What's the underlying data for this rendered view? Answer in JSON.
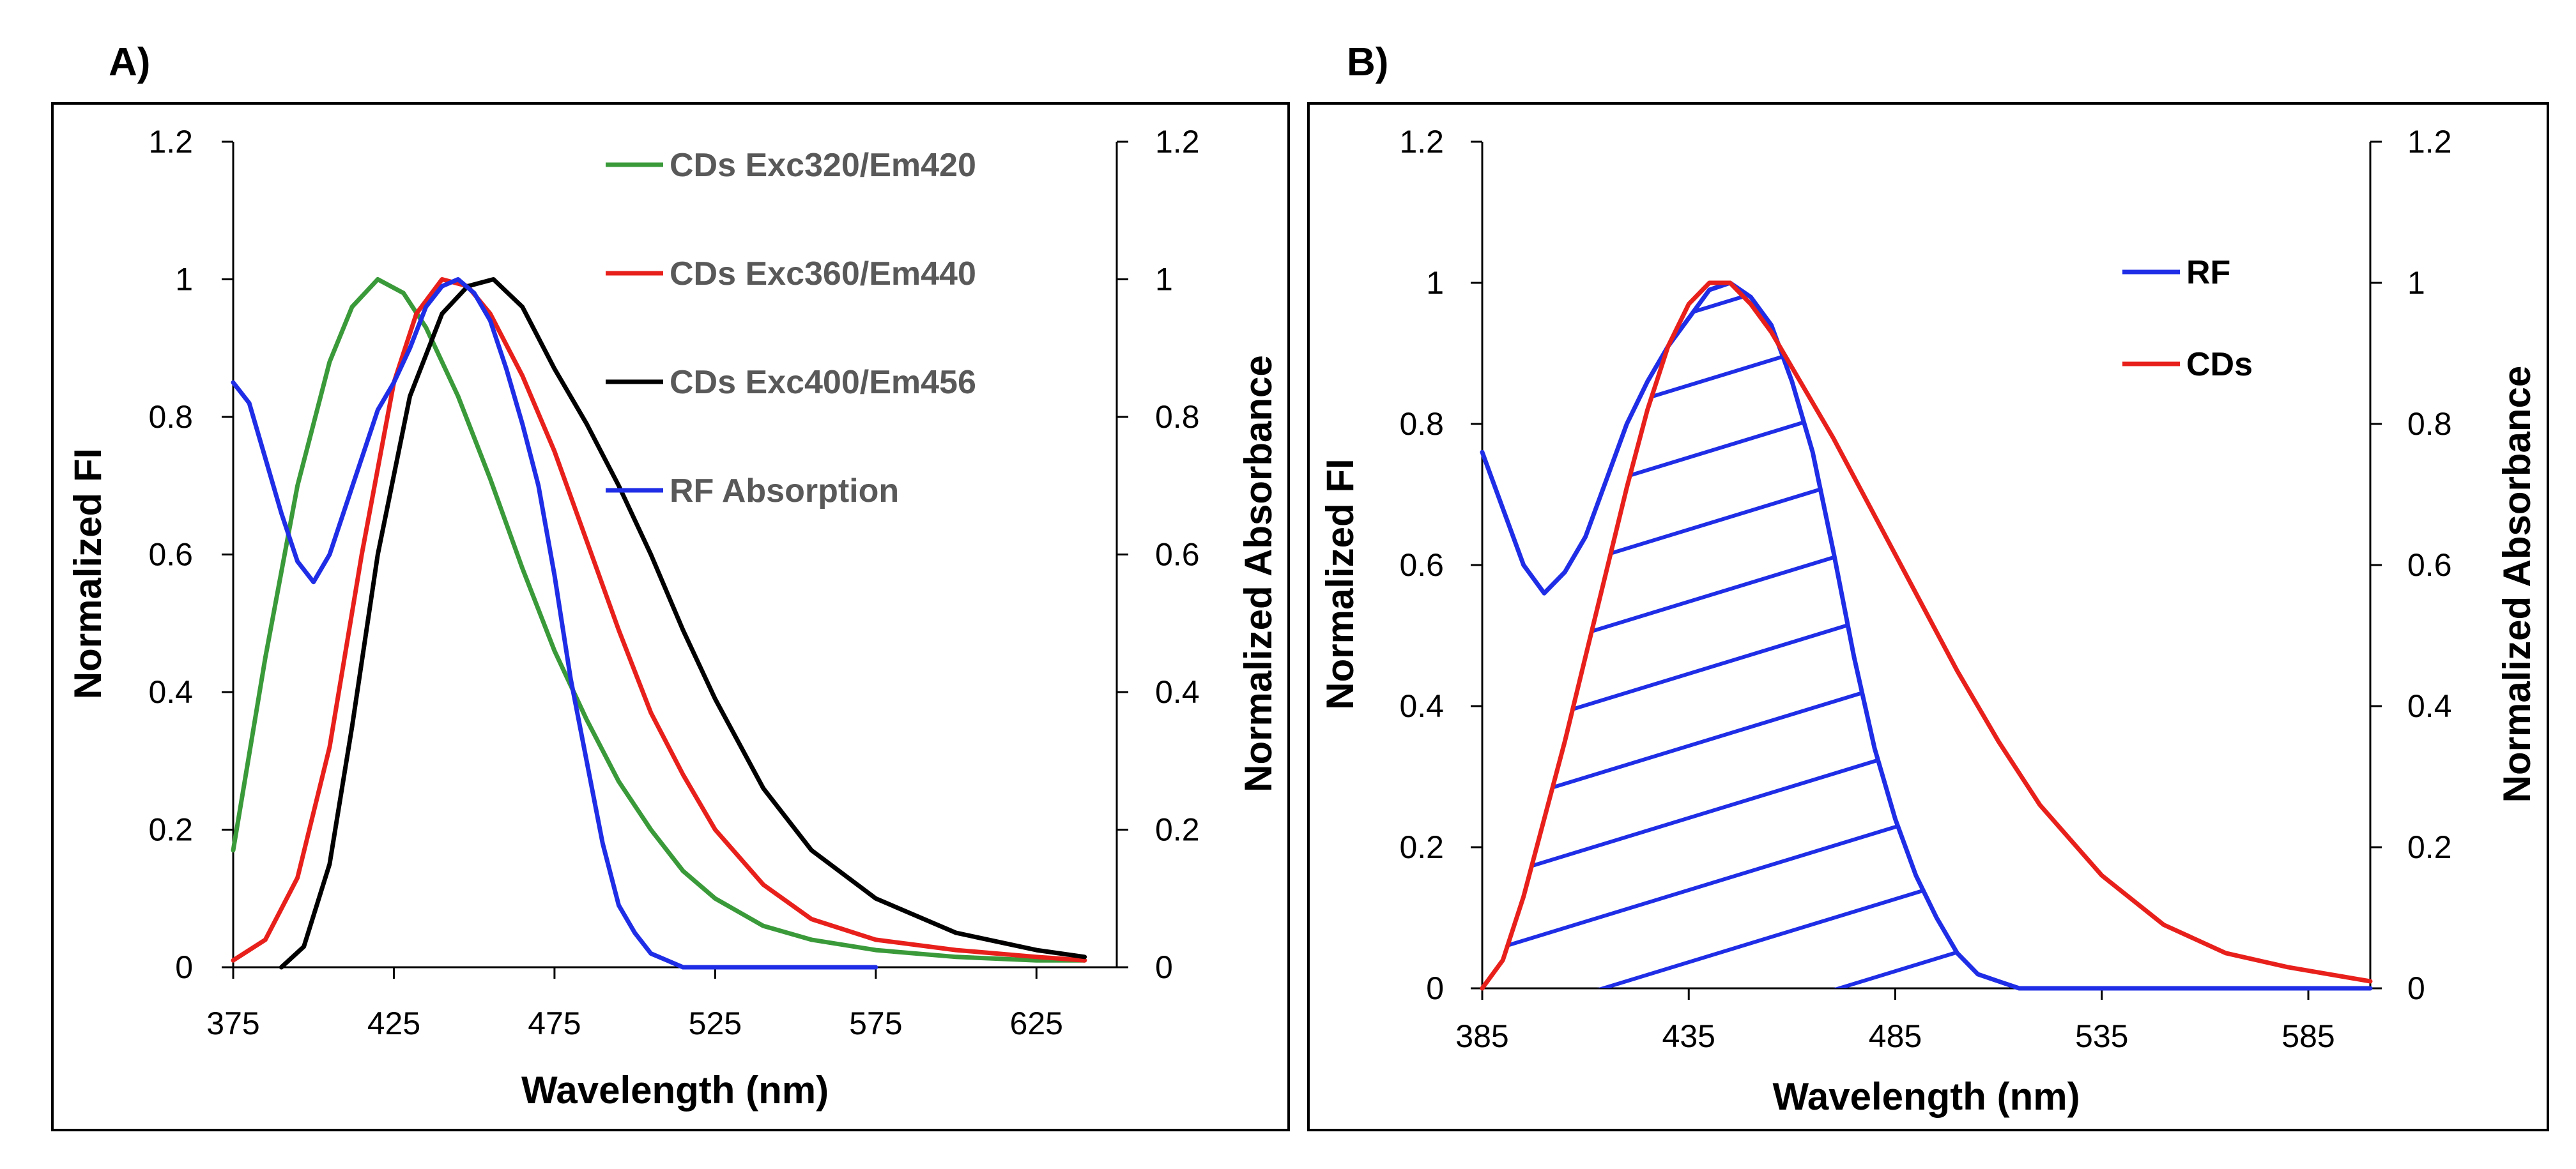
{
  "chart_data": [
    {
      "panel": "A)",
      "type": "line",
      "xlabel": "Wavelength (nm)",
      "ylabel": "Normalized FI",
      "y2label": "Normalized Absorbance",
      "xlim": [
        375,
        650
      ],
      "ylim": [
        0,
        1.2
      ],
      "y2lim": [
        0,
        1.2
      ],
      "xticks": [
        "375",
        "425",
        "475",
        "525",
        "575",
        "625"
      ],
      "yticks": [
        "0",
        "0.2",
        "0.4",
        "0.6",
        "0.8",
        "1",
        "1.2"
      ],
      "y2ticks": [
        "0",
        "0.2",
        "0.4",
        "0.6",
        "0.8",
        "1",
        "1.2"
      ],
      "legend_position": "top-right",
      "series": [
        {
          "name": "CDs Exc320/Em420",
          "color": "#3a9a3a",
          "axis": "left",
          "x": [
            375,
            385,
            395,
            405,
            412,
            420,
            428,
            435,
            445,
            455,
            465,
            475,
            485,
            495,
            505,
            515,
            525,
            540,
            555,
            575,
            600,
            625,
            640
          ],
          "y": [
            0.17,
            0.45,
            0.7,
            0.88,
            0.96,
            1.0,
            0.98,
            0.93,
            0.83,
            0.71,
            0.58,
            0.46,
            0.36,
            0.27,
            0.2,
            0.14,
            0.1,
            0.06,
            0.04,
            0.025,
            0.015,
            0.01,
            0.01
          ]
        },
        {
          "name": "CDs Exc360/Em440",
          "color": "#e8201c",
          "axis": "left",
          "x": [
            375,
            385,
            395,
            405,
            415,
            425,
            432,
            440,
            448,
            455,
            465,
            475,
            485,
            495,
            505,
            515,
            525,
            540,
            555,
            575,
            600,
            625,
            640
          ],
          "y": [
            0.01,
            0.04,
            0.13,
            0.32,
            0.6,
            0.85,
            0.95,
            1.0,
            0.99,
            0.95,
            0.86,
            0.75,
            0.62,
            0.49,
            0.37,
            0.28,
            0.2,
            0.12,
            0.07,
            0.04,
            0.025,
            0.015,
            0.01
          ]
        },
        {
          "name": "CDs Exc400/Em456",
          "color": "#000000",
          "axis": "left",
          "x": [
            390,
            397,
            405,
            412,
            420,
            430,
            440,
            448,
            456,
            465,
            475,
            485,
            495,
            505,
            515,
            525,
            540,
            555,
            575,
            600,
            625,
            640
          ],
          "y": [
            0.0,
            0.03,
            0.15,
            0.35,
            0.6,
            0.83,
            0.95,
            0.99,
            1.0,
            0.96,
            0.87,
            0.79,
            0.7,
            0.6,
            0.49,
            0.39,
            0.26,
            0.17,
            0.1,
            0.05,
            0.025,
            0.015
          ]
        },
        {
          "name": "RF Absorption",
          "color": "#1f2ee6",
          "axis": "right",
          "x": [
            375,
            380,
            385,
            390,
            395,
            400,
            405,
            410,
            415,
            420,
            425,
            430,
            435,
            440,
            445,
            450,
            455,
            460,
            465,
            470,
            475,
            480,
            485,
            490,
            495,
            500,
            505,
            510,
            515,
            520,
            525,
            550,
            575
          ],
          "y": [
            0.85,
            0.82,
            0.74,
            0.66,
            0.59,
            0.56,
            0.6,
            0.67,
            0.74,
            0.81,
            0.85,
            0.9,
            0.96,
            0.99,
            1.0,
            0.98,
            0.94,
            0.87,
            0.79,
            0.7,
            0.57,
            0.42,
            0.3,
            0.18,
            0.09,
            0.05,
            0.02,
            0.01,
            0.0,
            0.0,
            0.0,
            0.0,
            0.0
          ]
        }
      ]
    },
    {
      "panel": "B)",
      "type": "line",
      "xlabel": "Wavelength (nm)",
      "ylabel": "Normalized FI",
      "y2label": "Normalized Absorbance",
      "xlim": [
        385,
        600
      ],
      "ylim": [
        0,
        1.2
      ],
      "y2lim": [
        0,
        1.2
      ],
      "xticks": [
        "385",
        "435",
        "485",
        "535",
        "585"
      ],
      "yticks": [
        "0",
        "0.2",
        "0.4",
        "0.6",
        "0.8",
        "1",
        "1.2"
      ],
      "y2ticks": [
        "0",
        "0.2",
        "0.4",
        "0.6",
        "0.8",
        "1",
        "1.2"
      ],
      "legend_position": "top-right",
      "annotation": "hatched overlap area under RF curve",
      "series": [
        {
          "name": "RF",
          "color": "#1f2ee6",
          "axis": "right",
          "x": [
            385,
            390,
            395,
            400,
            405,
            410,
            415,
            420,
            425,
            430,
            435,
            440,
            445,
            450,
            455,
            460,
            465,
            470,
            475,
            480,
            485,
            490,
            495,
            500,
            505,
            510,
            515,
            520,
            525,
            600
          ],
          "y": [
            0.76,
            0.68,
            0.6,
            0.56,
            0.59,
            0.64,
            0.72,
            0.8,
            0.86,
            0.91,
            0.95,
            0.99,
            1.0,
            0.98,
            0.94,
            0.86,
            0.76,
            0.62,
            0.47,
            0.34,
            0.24,
            0.16,
            0.1,
            0.05,
            0.02,
            0.01,
            0.0,
            0.0,
            0.0,
            0.0
          ]
        },
        {
          "name": "CDs",
          "color": "#e8201c",
          "axis": "left",
          "x": [
            385,
            390,
            395,
            400,
            405,
            410,
            415,
            420,
            425,
            430,
            435,
            440,
            445,
            450,
            455,
            460,
            470,
            480,
            490,
            500,
            510,
            520,
            535,
            550,
            565,
            580,
            590,
            600
          ],
          "y": [
            0.0,
            0.04,
            0.13,
            0.24,
            0.35,
            0.47,
            0.59,
            0.71,
            0.82,
            0.91,
            0.97,
            1.0,
            1.0,
            0.97,
            0.93,
            0.88,
            0.78,
            0.67,
            0.56,
            0.45,
            0.35,
            0.26,
            0.16,
            0.09,
            0.05,
            0.03,
            0.02,
            0.01
          ]
        }
      ]
    }
  ]
}
